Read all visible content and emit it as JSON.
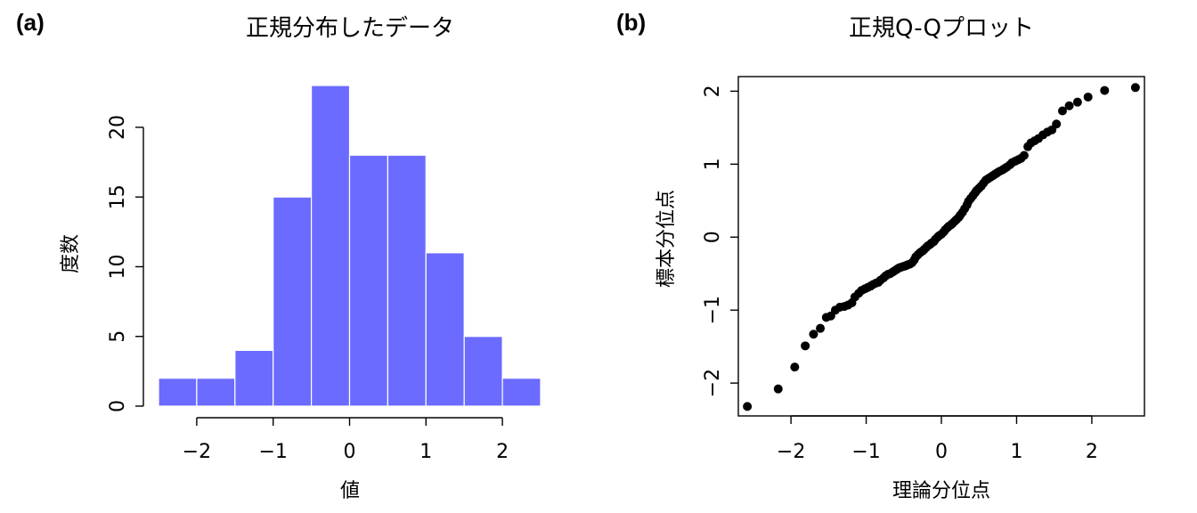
{
  "colors": {
    "bar_fill": "#6b6bff",
    "bar_edge": "#ffffff",
    "point": "#000000",
    "axis": "#000000"
  },
  "panels": {
    "a": {
      "label": "(a)",
      "title": "正規分布したデータ",
      "xlabel": "値",
      "ylabel": "度数"
    },
    "b": {
      "label": "(b)",
      "title": "正規Q-Qプロット",
      "xlabel": "理論分位点",
      "ylabel": "標本分位点"
    }
  },
  "chart_data": [
    {
      "type": "bar",
      "title": "正規分布したデータ",
      "xlabel": "値",
      "ylabel": "度数",
      "bins": [
        [
          -2.5,
          -2.0
        ],
        [
          -2.0,
          -1.5
        ],
        [
          -1.5,
          -1.0
        ],
        [
          -1.0,
          -0.5
        ],
        [
          -0.5,
          0.0
        ],
        [
          0.0,
          0.5
        ],
        [
          0.5,
          1.0
        ],
        [
          1.0,
          1.5
        ],
        [
          1.5,
          2.0
        ],
        [
          2.0,
          2.5
        ]
      ],
      "values": [
        2,
        2,
        4,
        15,
        23,
        18,
        18,
        11,
        5,
        2
      ],
      "xlim": [
        -2.5,
        2.5
      ],
      "ylim": [
        0,
        23
      ],
      "xticks": [
        -2,
        -1,
        0,
        1,
        2
      ],
      "xtick_labels": [
        "−2",
        "−1",
        "0",
        "1",
        "2"
      ],
      "yticks": [
        0,
        5,
        10,
        15,
        20
      ],
      "ytick_labels": [
        "0",
        "5",
        "10",
        "15",
        "20"
      ]
    },
    {
      "type": "scatter",
      "title": "正規Q-Qプロット",
      "xlabel": "理論分位点",
      "ylabel": "標本分位点",
      "xlim": [
        -2.7,
        2.7
      ],
      "ylim": [
        -2.45,
        2.2
      ],
      "xticks": [
        -2,
        -1,
        0,
        1,
        2
      ],
      "xtick_labels": [
        "−2",
        "−1",
        "0",
        "1",
        "2"
      ],
      "yticks": [
        -2,
        -1,
        0,
        1,
        2
      ],
      "ytick_labels": [
        "−2",
        "−1",
        "0",
        "1",
        "2"
      ],
      "points": [
        [
          -2.58,
          -2.32
        ],
        [
          -2.17,
          -2.08
        ],
        [
          -1.95,
          -1.78
        ],
        [
          -1.81,
          -1.49
        ],
        [
          -1.7,
          -1.33
        ],
        [
          -1.61,
          -1.25
        ],
        [
          -1.53,
          -1.1
        ],
        [
          -1.47,
          -1.08
        ],
        [
          -1.41,
          -1.0
        ],
        [
          -1.35,
          -0.96
        ],
        [
          -1.29,
          -0.95
        ],
        [
          -1.24,
          -0.93
        ],
        [
          -1.19,
          -0.9
        ],
        [
          -1.15,
          -0.82
        ],
        [
          -1.1,
          -0.77
        ],
        [
          -1.06,
          -0.73
        ],
        [
          -1.02,
          -0.71
        ],
        [
          -0.98,
          -0.69
        ],
        [
          -0.94,
          -0.67
        ],
        [
          -0.91,
          -0.65
        ],
        [
          -0.87,
          -0.63
        ],
        [
          -0.84,
          -0.62
        ],
        [
          -0.81,
          -0.59
        ],
        [
          -0.77,
          -0.56
        ],
        [
          -0.74,
          -0.53
        ],
        [
          -0.71,
          -0.51
        ],
        [
          -0.68,
          -0.5
        ],
        [
          -0.65,
          -0.48
        ],
        [
          -0.62,
          -0.46
        ],
        [
          -0.59,
          -0.44
        ],
        [
          -0.56,
          -0.42
        ],
        [
          -0.53,
          -0.41
        ],
        [
          -0.5,
          -0.4
        ],
        [
          -0.47,
          -0.39
        ],
        [
          -0.45,
          -0.38
        ],
        [
          -0.42,
          -0.37
        ],
        [
          -0.39,
          -0.35
        ],
        [
          -0.36,
          -0.31
        ],
        [
          -0.34,
          -0.27
        ],
        [
          -0.31,
          -0.24
        ],
        [
          -0.28,
          -0.21
        ],
        [
          -0.25,
          -0.19
        ],
        [
          -0.23,
          -0.17
        ],
        [
          -0.2,
          -0.14
        ],
        [
          -0.18,
          -0.12
        ],
        [
          -0.15,
          -0.1
        ],
        [
          -0.13,
          -0.08
        ],
        [
          -0.1,
          -0.06
        ],
        [
          -0.08,
          -0.03
        ],
        [
          -0.05,
          0.0
        ],
        [
          -0.03,
          0.02
        ],
        [
          0.0,
          0.04
        ],
        [
          0.03,
          0.07
        ],
        [
          0.05,
          0.1
        ],
        [
          0.08,
          0.13
        ],
        [
          0.1,
          0.15
        ],
        [
          0.13,
          0.17
        ],
        [
          0.15,
          0.19
        ],
        [
          0.18,
          0.22
        ],
        [
          0.2,
          0.24
        ],
        [
          0.23,
          0.27
        ],
        [
          0.25,
          0.3
        ],
        [
          0.28,
          0.34
        ],
        [
          0.31,
          0.39
        ],
        [
          0.34,
          0.44
        ],
        [
          0.36,
          0.49
        ],
        [
          0.39,
          0.53
        ],
        [
          0.42,
          0.57
        ],
        [
          0.45,
          0.61
        ],
        [
          0.47,
          0.64
        ],
        [
          0.5,
          0.67
        ],
        [
          0.53,
          0.7
        ],
        [
          0.56,
          0.74
        ],
        [
          0.59,
          0.78
        ],
        [
          0.62,
          0.8
        ],
        [
          0.65,
          0.82
        ],
        [
          0.68,
          0.84
        ],
        [
          0.71,
          0.86
        ],
        [
          0.74,
          0.88
        ],
        [
          0.77,
          0.9
        ],
        [
          0.81,
          0.92
        ],
        [
          0.84,
          0.94
        ],
        [
          0.87,
          0.96
        ],
        [
          0.91,
          0.99
        ],
        [
          0.94,
          1.02
        ],
        [
          0.98,
          1.04
        ],
        [
          1.02,
          1.06
        ],
        [
          1.06,
          1.08
        ],
        [
          1.1,
          1.12
        ],
        [
          1.15,
          1.24
        ],
        [
          1.19,
          1.29
        ],
        [
          1.24,
          1.32
        ],
        [
          1.29,
          1.35
        ],
        [
          1.35,
          1.4
        ],
        [
          1.41,
          1.44
        ],
        [
          1.47,
          1.47
        ],
        [
          1.53,
          1.55
        ],
        [
          1.61,
          1.73
        ],
        [
          1.7,
          1.8
        ],
        [
          1.81,
          1.85
        ],
        [
          1.95,
          1.92
        ],
        [
          2.17,
          2.01
        ],
        [
          2.58,
          2.05
        ]
      ]
    }
  ]
}
